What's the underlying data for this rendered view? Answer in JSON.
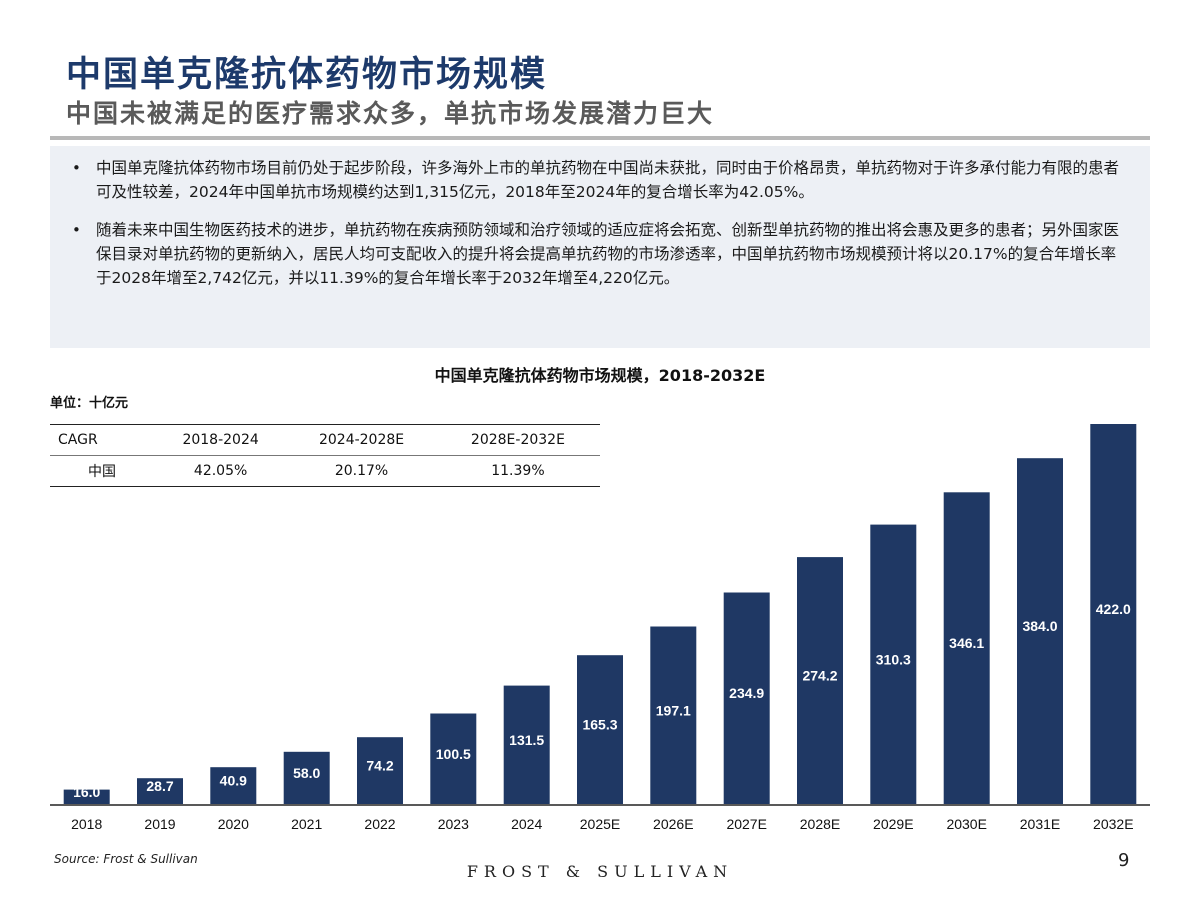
{
  "header": {
    "title": "中国单克隆抗体药物市场规模",
    "subtitle": "中国未被满足的医疗需求众多，单抗市场发展潜力巨大"
  },
  "bullets": [
    "中国单克隆抗体药物市场目前仍处于起步阶段，许多海外上市的单抗药物在中国尚未获批，同时由于价格昂贵，单抗药物对于许多承付能力有限的患者可及性较差，2024年中国单抗市场规模约达到1,315亿元，2018年至2024年的复合增长率为42.05%。",
    "随着未来中国生物医药技术的进步，单抗药物在疾病预防领域和治疗领域的适应症将会拓宽、创新型单抗药物的推出将会惠及更多的患者；另外国家医保目录对单抗药物的更新纳入，居民人均可支配收入的提升将会提高单抗药物的市场渗透率，中国单抗药物市场规模预计将以20.17%的复合年增长率于2028年增至2,742亿元，并以11.39%的复合年增长率于2032年增至4,220亿元。"
  ],
  "bullet_symbol": "•",
  "unit_label": "单位：十亿元",
  "cagr_table": {
    "headers": [
      "CAGR",
      "2018-2024",
      "2024-2028E",
      "2028E-2032E"
    ],
    "rows": [
      [
        "中国",
        "42.05%",
        "20.17%",
        "11.39%"
      ]
    ]
  },
  "chart_data": {
    "type": "bar",
    "title": "中国单克隆抗体药物市场规模，2018-2032E",
    "categories": [
      "2018",
      "2019",
      "2020",
      "2021",
      "2022",
      "2023",
      "2024",
      "2025E",
      "2026E",
      "2027E",
      "2028E",
      "2029E",
      "2030E",
      "2031E",
      "2032E"
    ],
    "values": [
      16.0,
      28.7,
      40.9,
      58.0,
      74.2,
      100.5,
      131.5,
      165.3,
      197.1,
      234.9,
      274.2,
      310.3,
      346.1,
      384.0,
      422.0
    ],
    "value_labels": [
      "16.0",
      "28.7",
      "40.9",
      "58.0",
      "74.2",
      "100.5",
      "131.5",
      "165.3",
      "197.1",
      "234.9",
      "274.2",
      "310.3",
      "346.1",
      "384.0",
      "422.0"
    ],
    "ylim": [
      0,
      422.0
    ],
    "grid": false,
    "bar_color": "#1f3864",
    "label_text_color": "#ffffff"
  },
  "footer": {
    "source": "Source: Frost & Sullivan",
    "logo": "FROST & SULLIVAN",
    "page_number": "9"
  }
}
